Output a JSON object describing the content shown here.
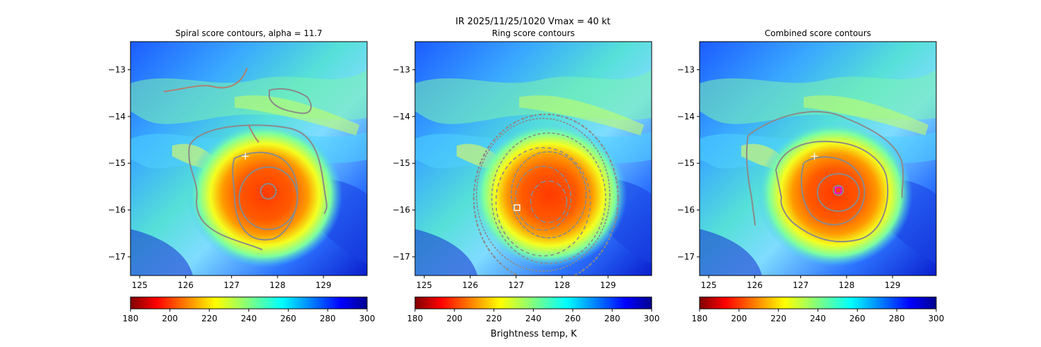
{
  "figure": {
    "suptitle_line1": "IR  2025/11/25/1020    Vmax = 40 kt",
    "colorbar_label": "Brightness temp, K"
  },
  "colors": {
    "contour": "#8a8a8a",
    "spiral_contour": "#b08070",
    "marker": "#ffffff",
    "center_marker": "#ff00ff"
  },
  "chart_data": [
    {
      "type": "heatmap",
      "title": "Spiral score contours, alpha = 11.7",
      "colormap": "jet_r",
      "xlim": [
        124.8,
        129.95
      ],
      "ylim": [
        -17.4,
        -12.4
      ],
      "xticks": [
        125,
        126,
        127,
        128,
        129
      ],
      "yticks": [
        -13,
        -14,
        -15,
        -16,
        -17
      ],
      "colorbar": {
        "range": [
          180,
          300
        ],
        "ticks": [
          180,
          200,
          220,
          240,
          260,
          280,
          300
        ]
      },
      "overlay": "spiral score contours",
      "marker": {
        "shape": "plus",
        "x": 127.3,
        "y": -14.85
      },
      "center": {
        "x": 127.8,
        "y": -15.6
      }
    },
    {
      "type": "heatmap",
      "title": "Ring score contours",
      "colormap": "jet_r",
      "xlim": [
        124.8,
        129.95
      ],
      "ylim": [
        -17.4,
        -12.4
      ],
      "xticks": [
        125,
        126,
        127,
        128,
        129
      ],
      "yticks": [
        -13,
        -14,
        -15,
        -16,
        -17
      ],
      "colorbar": {
        "range": [
          180,
          300
        ],
        "ticks": [
          180,
          200,
          220,
          240,
          260,
          280,
          300
        ]
      },
      "overlay": "ring score contours",
      "marker": {
        "shape": "square",
        "x": 127.02,
        "y": -15.95
      },
      "center": {
        "x": 127.8,
        "y": -15.6
      }
    },
    {
      "type": "heatmap",
      "title": "Combined score contours",
      "colormap": "jet_r",
      "xlim": [
        124.8,
        129.95
      ],
      "ylim": [
        -17.4,
        -12.4
      ],
      "xticks": [
        125,
        126,
        127,
        128,
        129
      ],
      "yticks": [
        -13,
        -14,
        -15,
        -16,
        -17
      ],
      "colorbar": {
        "range": [
          180,
          300
        ],
        "ticks": [
          180,
          200,
          220,
          240,
          260,
          280,
          300
        ]
      },
      "overlay": "combined score contours",
      "marker": {
        "shape": "plus",
        "x": 127.3,
        "y": -14.85
      },
      "center": {
        "x": 127.82,
        "y": -15.58
      }
    }
  ]
}
